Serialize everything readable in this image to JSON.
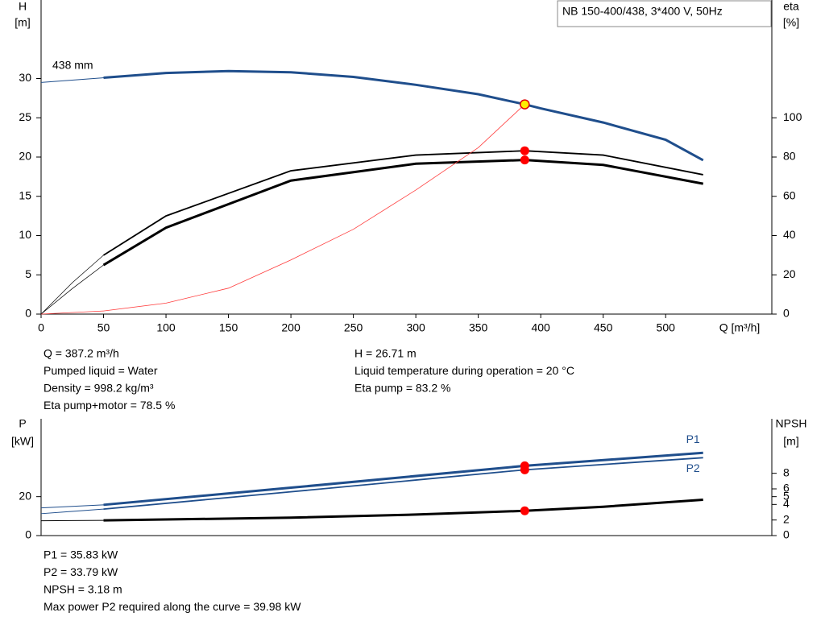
{
  "title_box": "NB 150-400/438, 3*400 V, 50Hz",
  "chart_data": [
    {
      "type": "line",
      "xlim": [
        0,
        585
      ],
      "xticks": [
        0,
        50,
        100,
        150,
        200,
        250,
        300,
        350,
        400,
        450,
        500
      ],
      "xlabel": "Q [m³/h]",
      "ylabel": "H",
      "yunit": "[m]",
      "y2label": "eta",
      "y2unit": "[%]",
      "ylim": [
        0,
        40
      ],
      "yticks": [
        0,
        5,
        10,
        15,
        20,
        25,
        30
      ],
      "y2lim": [
        0,
        160
      ],
      "y2ticks": [
        0,
        20,
        40,
        60,
        80,
        100
      ],
      "annotation": "438 mm",
      "series": [
        {
          "color": "#1f4e8c",
          "width": 1,
          "axis": "y",
          "x": [
            0,
            50
          ],
          "values": [
            29.5,
            30.1
          ]
        },
        {
          "color": "#1f4e8c",
          "width": 3,
          "axis": "y",
          "x": [
            50,
            100,
            150,
            200,
            250,
            300,
            350,
            387.2,
            400,
            450,
            500,
            530
          ],
          "values": [
            30.1,
            30.7,
            30.95,
            30.8,
            30.2,
            29.2,
            28.0,
            26.71,
            26.2,
            24.4,
            22.2,
            19.6
          ]
        },
        {
          "color": "#000000",
          "width": 0.7,
          "axis": "y2",
          "x": [
            0,
            25,
            50
          ],
          "values": [
            0,
            16,
            30
          ]
        },
        {
          "color": "#000000",
          "width": 1.8,
          "axis": "y2",
          "x": [
            50,
            100,
            200,
            300,
            387.2,
            450,
            530
          ],
          "values": [
            30,
            50,
            73,
            81,
            83.2,
            81,
            71
          ]
        },
        {
          "color": "#000000",
          "width": 0.7,
          "axis": "y2",
          "x": [
            0,
            25,
            50
          ],
          "values": [
            0,
            13,
            25
          ]
        },
        {
          "color": "#000000",
          "width": 3,
          "axis": "y2",
          "x": [
            50,
            100,
            200,
            300,
            387.2,
            450,
            530
          ],
          "values": [
            25,
            44,
            68,
            76.6,
            78.5,
            76,
            66.4
          ]
        },
        {
          "color": "#ff3b3b",
          "width": 0.8,
          "axis": "y",
          "x": [
            0,
            50,
            100,
            150,
            200,
            250,
            300,
            350,
            387.2
          ],
          "values": [
            0,
            0.4,
            1.4,
            3.3,
            6.9,
            10.8,
            15.8,
            21.2,
            26.71
          ]
        }
      ],
      "points": [
        {
          "x": 387.2,
          "value": 26.71,
          "color": "#ffee00",
          "axis": "y"
        },
        {
          "x": 387.2,
          "value": 83.2,
          "color": "#ff0000",
          "axis": "y2"
        },
        {
          "x": 387.2,
          "value": 78.5,
          "color": "#ff0000",
          "axis": "y2"
        }
      ]
    },
    {
      "type": "line",
      "xlim": [
        0,
        585
      ],
      "ylabel": "P",
      "yunit": "[kW]",
      "y2label": "NPSH",
      "y2unit": "[m]",
      "ylim": [
        0,
        60
      ],
      "yticks": [
        0,
        20
      ],
      "y2lim": [
        0,
        15
      ],
      "y2ticks": [
        0,
        2,
        4,
        5,
        6,
        8
      ],
      "series": [
        {
          "color": "#1f4e8c",
          "width": 1,
          "axis": "y",
          "x": [
            0,
            50
          ],
          "values": [
            14.2,
            15.8
          ]
        },
        {
          "name": "P1",
          "color": "#1f4e8c",
          "width": 3,
          "axis": "y",
          "x": [
            50,
            200,
            387.2,
            530
          ],
          "values": [
            15.8,
            24.6,
            35.83,
            42.5
          ]
        },
        {
          "color": "#1f4e8c",
          "width": 1,
          "axis": "y",
          "x": [
            0,
            50
          ],
          "values": [
            11.25,
            13.6
          ]
        },
        {
          "name": "P2",
          "color": "#1f4e8c",
          "width": 1.8,
          "axis": "y",
          "x": [
            50,
            200,
            387.2,
            530
          ],
          "values": [
            13.6,
            22.5,
            33.79,
            40
          ]
        },
        {
          "color": "#000000",
          "width": 1,
          "axis": "y2",
          "x": [
            0,
            50
          ],
          "values": [
            1.9,
            1.95
          ]
        },
        {
          "color": "#000000",
          "width": 3,
          "axis": "y2",
          "x": [
            50,
            200,
            300,
            387.2,
            450,
            530
          ],
          "values": [
            1.95,
            2.3,
            2.7,
            3.18,
            3.7,
            4.6
          ]
        }
      ],
      "points": [
        {
          "x": 387.2,
          "value": 35.83,
          "color": "#ff0000",
          "axis": "y"
        },
        {
          "x": 387.2,
          "value": 33.79,
          "color": "#ff0000",
          "axis": "y"
        },
        {
          "x": 387.2,
          "value": 3.18,
          "color": "#ff0000",
          "axis": "y2"
        }
      ]
    }
  ],
  "info_top_left": [
    "Q = 387.2 m³/h",
    "Pumped liquid = Water",
    "Density = 998.2 kg/m³",
    "Eta pump+motor = 78.5 %"
  ],
  "info_top_right": [
    "H = 26.71 m",
    "Liquid temperature during operation = 20 °C",
    "Eta pump = 83.2 %"
  ],
  "info_bottom": [
    "P1 = 35.83 kW",
    "P2 = 33.79 kW",
    "NPSH = 3.18 m",
    "Max power P2 required along the curve = 39.98 kW"
  ]
}
